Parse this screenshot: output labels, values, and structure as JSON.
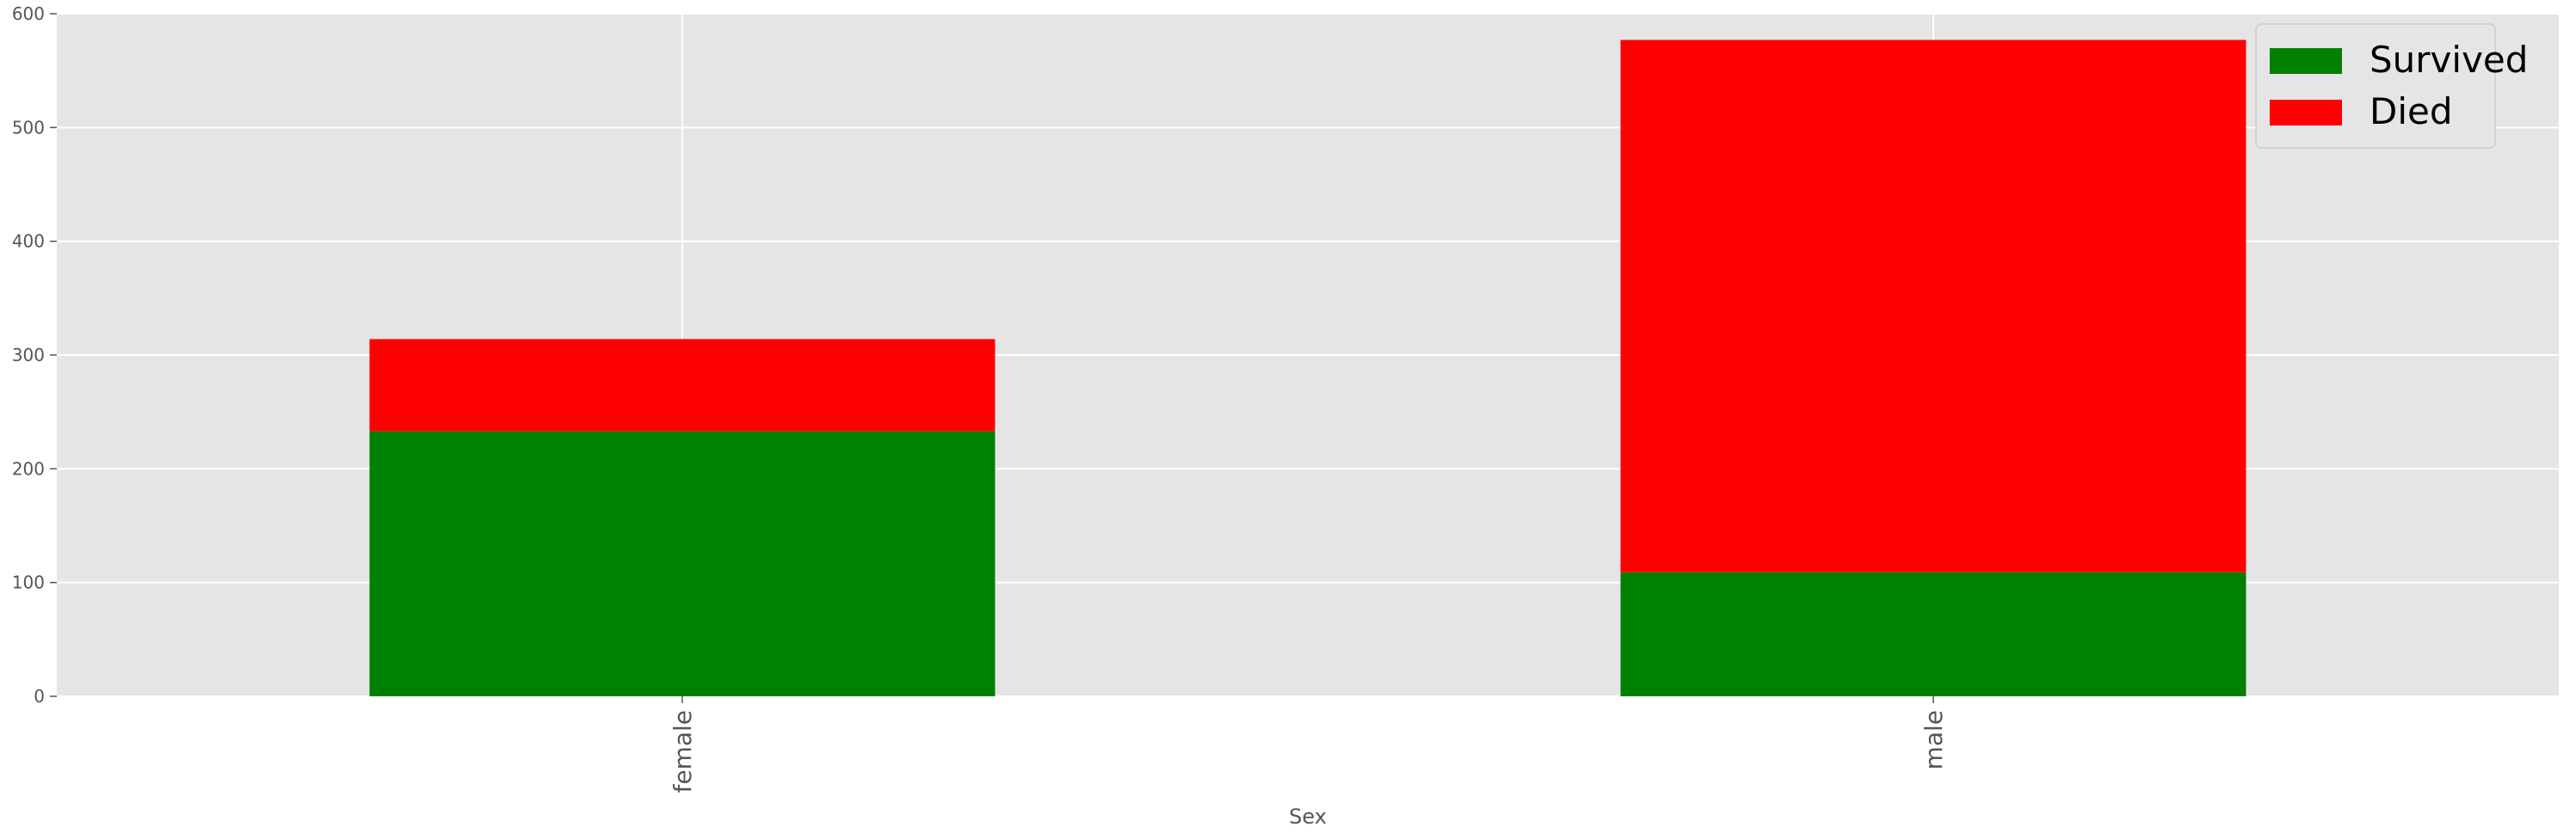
{
  "chart_data": {
    "type": "bar",
    "stacked": true,
    "categories": [
      "female",
      "male"
    ],
    "series": [
      {
        "name": "Survived",
        "color": "#008000",
        "values": [
          233,
          109
        ]
      },
      {
        "name": "Died",
        "color": "#ff0000",
        "values": [
          81,
          468
        ]
      }
    ],
    "xlabel": "Sex",
    "ylabel": "",
    "ylim": [
      0,
      600
    ],
    "yticks": [
      0,
      100,
      200,
      300,
      400,
      500,
      600
    ],
    "grid": true,
    "legend_position": "top-right"
  }
}
